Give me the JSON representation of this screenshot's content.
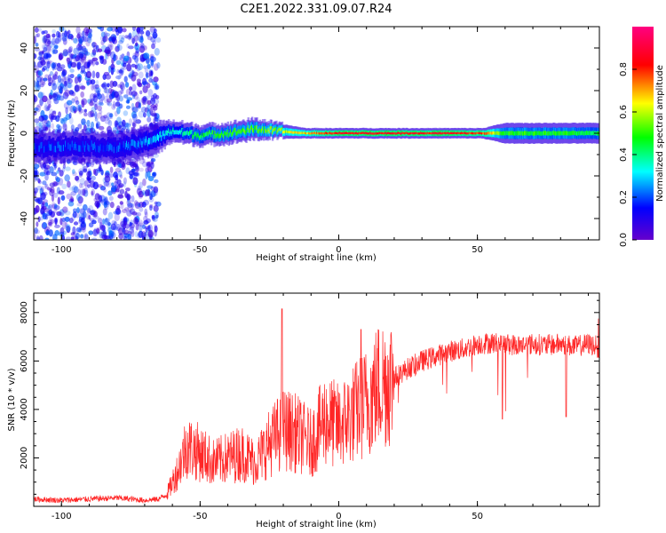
{
  "title": "C2E1.2022.331.09.07.R24",
  "chart_data": [
    {
      "type": "heatmap",
      "xlabel": "Height of straight line (km)",
      "ylabel": "Frequency (Hz)",
      "xlim": [
        -110,
        94
      ],
      "ylim": [
        -50,
        50
      ],
      "x_ticks": [
        -100,
        -50,
        0,
        50
      ],
      "y_ticks": [
        -40,
        -20,
        0,
        20,
        40
      ],
      "colorbar": {
        "label": "Normalized spectral amplitude",
        "range": [
          0,
          1
        ],
        "ticks": [
          0.0,
          0.2,
          0.4,
          0.6,
          0.8
        ],
        "colormap": [
          "#6600cc",
          "#0000ff",
          "#00ffff",
          "#00ff00",
          "#ffff00",
          "#ff0000",
          "#ff0080"
        ]
      },
      "ridge": [
        {
          "x": -110,
          "y": -7,
          "amplitude": 0.2,
          "spread": 3
        },
        {
          "x": -100,
          "y": -6,
          "amplitude": 0.2,
          "spread": 3
        },
        {
          "x": -90,
          "y": -6,
          "amplitude": 0.2,
          "spread": 3
        },
        {
          "x": -80,
          "y": -7,
          "amplitude": 0.2,
          "spread": 3
        },
        {
          "x": -72,
          "y": -5,
          "amplitude": 0.25,
          "spread": 3
        },
        {
          "x": -65,
          "y": -2,
          "amplitude": 0.3,
          "spread": 3
        },
        {
          "x": -60,
          "y": 1,
          "amplitude": 0.35,
          "spread": 2
        },
        {
          "x": -50,
          "y": -1,
          "amplitude": 0.45,
          "spread": 2
        },
        {
          "x": -40,
          "y": 0,
          "amplitude": 0.5,
          "spread": 2
        },
        {
          "x": -30,
          "y": 2,
          "amplitude": 0.55,
          "spread": 2
        },
        {
          "x": -22,
          "y": 1,
          "amplitude": 0.6,
          "spread": 1.5
        },
        {
          "x": -12,
          "y": 0,
          "amplitude": 0.7,
          "spread": 1
        },
        {
          "x": 0,
          "y": 0,
          "amplitude": 0.85,
          "spread": 1
        },
        {
          "x": 20,
          "y": 0,
          "amplitude": 0.85,
          "spread": 1
        },
        {
          "x": 40,
          "y": 0,
          "amplitude": 0.85,
          "spread": 1
        },
        {
          "x": 52,
          "y": 0,
          "amplitude": 0.8,
          "spread": 1
        },
        {
          "x": 60,
          "y": 0,
          "amplitude": 0.5,
          "spread": 2
        },
        {
          "x": 80,
          "y": 0,
          "amplitude": 0.5,
          "spread": 2
        },
        {
          "x": 94,
          "y": 0,
          "amplitude": 0.45,
          "spread": 2
        }
      ]
    },
    {
      "type": "line",
      "xlabel": "Height of straight line (km)",
      "ylabel": "SNR (10 * v/v)",
      "xlim": [
        -110,
        94
      ],
      "ylim": [
        0,
        8800
      ],
      "x_ticks": [
        -100,
        -50,
        0,
        50
      ],
      "y_ticks": [
        2000,
        4000,
        6000,
        8000
      ],
      "color": "#ff0000",
      "series": [
        {
          "x": [
            -110,
            -100,
            -90,
            -80,
            -70,
            -65,
            -62,
            -58,
            -55,
            -50,
            -45,
            -40,
            -35,
            -30,
            -25,
            -20,
            -15,
            -10,
            -5,
            0,
            5,
            10,
            15,
            20,
            25,
            30,
            35,
            40,
            45,
            50,
            55,
            60,
            65,
            70,
            75,
            80,
            85,
            90,
            94
          ],
          "values": [
            300,
            250,
            300,
            350,
            250,
            300,
            500,
            1500,
            2500,
            2200,
            1800,
            2000,
            2200,
            1800,
            2600,
            3200,
            3000,
            2600,
            3600,
            3300,
            3800,
            4300,
            5100,
            5300,
            5700,
            6000,
            6200,
            6400,
            6500,
            6700,
            6750,
            6700,
            6650,
            6700,
            6650,
            6700,
            6600,
            6700,
            6600
          ]
        }
      ]
    }
  ]
}
